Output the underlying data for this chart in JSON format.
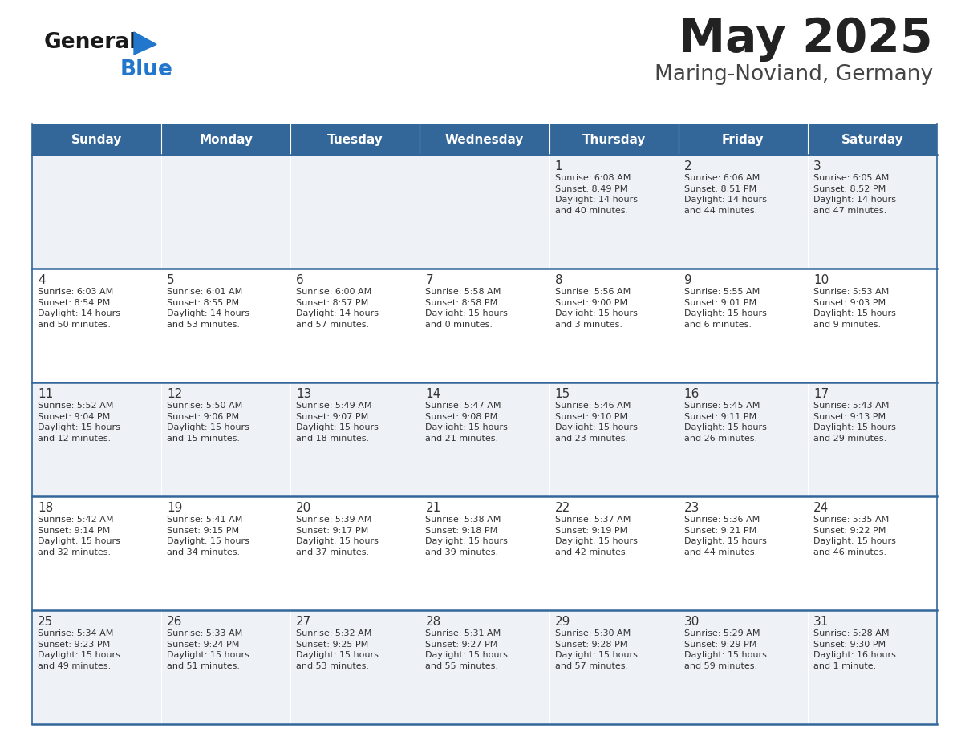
{
  "title": "May 2025",
  "subtitle": "Maring-Noviand, Germany",
  "header_bg": "#336699",
  "header_text": "#ffffff",
  "row_bg_odd": "#eef2f7",
  "row_bg_even": "#ffffff",
  "border_color": "#336699",
  "day_headers": [
    "Sunday",
    "Monday",
    "Tuesday",
    "Wednesday",
    "Thursday",
    "Friday",
    "Saturday"
  ],
  "title_color": "#222222",
  "subtitle_color": "#444444",
  "day_num_color": "#333333",
  "cell_text_color": "#333333",
  "logo_text_color": "#1a1a1a",
  "logo_blue_color": "#2277cc",
  "calendar": [
    [
      {
        "day": "",
        "info": ""
      },
      {
        "day": "",
        "info": ""
      },
      {
        "day": "",
        "info": ""
      },
      {
        "day": "",
        "info": ""
      },
      {
        "day": "1",
        "info": "Sunrise: 6:08 AM\nSunset: 8:49 PM\nDaylight: 14 hours\nand 40 minutes."
      },
      {
        "day": "2",
        "info": "Sunrise: 6:06 AM\nSunset: 8:51 PM\nDaylight: 14 hours\nand 44 minutes."
      },
      {
        "day": "3",
        "info": "Sunrise: 6:05 AM\nSunset: 8:52 PM\nDaylight: 14 hours\nand 47 minutes."
      }
    ],
    [
      {
        "day": "4",
        "info": "Sunrise: 6:03 AM\nSunset: 8:54 PM\nDaylight: 14 hours\nand 50 minutes."
      },
      {
        "day": "5",
        "info": "Sunrise: 6:01 AM\nSunset: 8:55 PM\nDaylight: 14 hours\nand 53 minutes."
      },
      {
        "day": "6",
        "info": "Sunrise: 6:00 AM\nSunset: 8:57 PM\nDaylight: 14 hours\nand 57 minutes."
      },
      {
        "day": "7",
        "info": "Sunrise: 5:58 AM\nSunset: 8:58 PM\nDaylight: 15 hours\nand 0 minutes."
      },
      {
        "day": "8",
        "info": "Sunrise: 5:56 AM\nSunset: 9:00 PM\nDaylight: 15 hours\nand 3 minutes."
      },
      {
        "day": "9",
        "info": "Sunrise: 5:55 AM\nSunset: 9:01 PM\nDaylight: 15 hours\nand 6 minutes."
      },
      {
        "day": "10",
        "info": "Sunrise: 5:53 AM\nSunset: 9:03 PM\nDaylight: 15 hours\nand 9 minutes."
      }
    ],
    [
      {
        "day": "11",
        "info": "Sunrise: 5:52 AM\nSunset: 9:04 PM\nDaylight: 15 hours\nand 12 minutes."
      },
      {
        "day": "12",
        "info": "Sunrise: 5:50 AM\nSunset: 9:06 PM\nDaylight: 15 hours\nand 15 minutes."
      },
      {
        "day": "13",
        "info": "Sunrise: 5:49 AM\nSunset: 9:07 PM\nDaylight: 15 hours\nand 18 minutes."
      },
      {
        "day": "14",
        "info": "Sunrise: 5:47 AM\nSunset: 9:08 PM\nDaylight: 15 hours\nand 21 minutes."
      },
      {
        "day": "15",
        "info": "Sunrise: 5:46 AM\nSunset: 9:10 PM\nDaylight: 15 hours\nand 23 minutes."
      },
      {
        "day": "16",
        "info": "Sunrise: 5:45 AM\nSunset: 9:11 PM\nDaylight: 15 hours\nand 26 minutes."
      },
      {
        "day": "17",
        "info": "Sunrise: 5:43 AM\nSunset: 9:13 PM\nDaylight: 15 hours\nand 29 minutes."
      }
    ],
    [
      {
        "day": "18",
        "info": "Sunrise: 5:42 AM\nSunset: 9:14 PM\nDaylight: 15 hours\nand 32 minutes."
      },
      {
        "day": "19",
        "info": "Sunrise: 5:41 AM\nSunset: 9:15 PM\nDaylight: 15 hours\nand 34 minutes."
      },
      {
        "day": "20",
        "info": "Sunrise: 5:39 AM\nSunset: 9:17 PM\nDaylight: 15 hours\nand 37 minutes."
      },
      {
        "day": "21",
        "info": "Sunrise: 5:38 AM\nSunset: 9:18 PM\nDaylight: 15 hours\nand 39 minutes."
      },
      {
        "day": "22",
        "info": "Sunrise: 5:37 AM\nSunset: 9:19 PM\nDaylight: 15 hours\nand 42 minutes."
      },
      {
        "day": "23",
        "info": "Sunrise: 5:36 AM\nSunset: 9:21 PM\nDaylight: 15 hours\nand 44 minutes."
      },
      {
        "day": "24",
        "info": "Sunrise: 5:35 AM\nSunset: 9:22 PM\nDaylight: 15 hours\nand 46 minutes."
      }
    ],
    [
      {
        "day": "25",
        "info": "Sunrise: 5:34 AM\nSunset: 9:23 PM\nDaylight: 15 hours\nand 49 minutes."
      },
      {
        "day": "26",
        "info": "Sunrise: 5:33 AM\nSunset: 9:24 PM\nDaylight: 15 hours\nand 51 minutes."
      },
      {
        "day": "27",
        "info": "Sunrise: 5:32 AM\nSunset: 9:25 PM\nDaylight: 15 hours\nand 53 minutes."
      },
      {
        "day": "28",
        "info": "Sunrise: 5:31 AM\nSunset: 9:27 PM\nDaylight: 15 hours\nand 55 minutes."
      },
      {
        "day": "29",
        "info": "Sunrise: 5:30 AM\nSunset: 9:28 PM\nDaylight: 15 hours\nand 57 minutes."
      },
      {
        "day": "30",
        "info": "Sunrise: 5:29 AM\nSunset: 9:29 PM\nDaylight: 15 hours\nand 59 minutes."
      },
      {
        "day": "31",
        "info": "Sunrise: 5:28 AM\nSunset: 9:30 PM\nDaylight: 16 hours\nand 1 minute."
      }
    ]
  ]
}
